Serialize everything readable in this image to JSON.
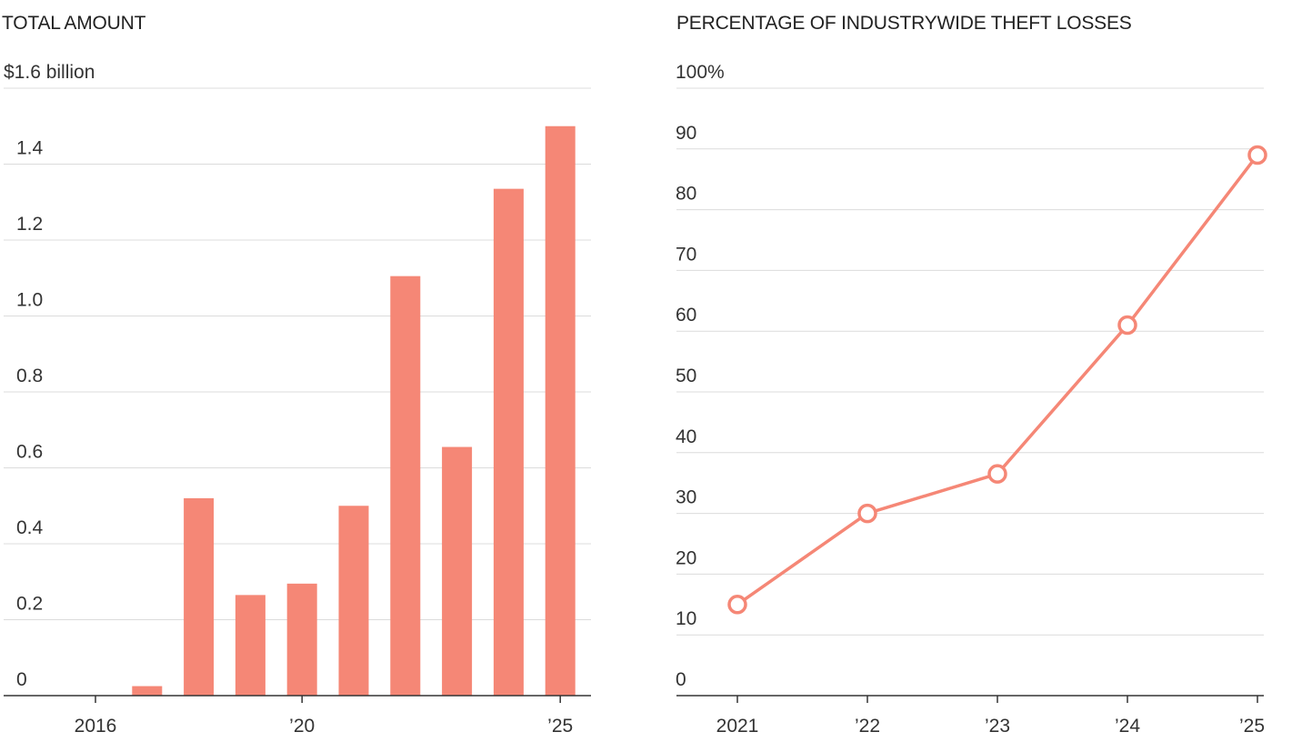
{
  "colors": {
    "accent": "#f58776",
    "grid": "#dcdcdc",
    "axis": "#333333",
    "text": "#222222"
  },
  "chart_data": [
    {
      "type": "bar",
      "title": "TOTAL AMOUNT",
      "ylabel": "",
      "xlabel": "",
      "ylim": [
        0,
        1.6
      ],
      "y_ticks": [
        0,
        0.2,
        0.4,
        0.6,
        0.8,
        1.0,
        1.2,
        1.4,
        1.6
      ],
      "y_tick_labels": [
        "0",
        "0.2",
        "0.4",
        "0.6",
        "0.8",
        "1.0",
        "1.2",
        "1.4",
        "$1.6 billion"
      ],
      "categories": [
        2016,
        2017,
        2018,
        2019,
        2020,
        2021,
        2022,
        2023,
        2024,
        2025
      ],
      "x_tick_labels": [
        {
          "x": 2016,
          "label": "2016"
        },
        {
          "x": 2020,
          "label": "’20"
        },
        {
          "x": 2025,
          "label": "’25"
        }
      ],
      "values": [
        0,
        0.025,
        0.52,
        0.265,
        0.295,
        0.5,
        1.105,
        0.655,
        1.335,
        1.5
      ],
      "grid": true
    },
    {
      "type": "line",
      "title": "PERCENTAGE OF INDUSTRYWIDE THEFT LOSSES",
      "ylabel": "",
      "xlabel": "",
      "ylim": [
        0,
        100
      ],
      "y_ticks": [
        0,
        10,
        20,
        30,
        40,
        50,
        60,
        70,
        80,
        90,
        100
      ],
      "y_tick_labels": [
        "0",
        "10",
        "20",
        "30",
        "40",
        "50",
        "60",
        "70",
        "80",
        "90",
        "100%"
      ],
      "x": [
        2021,
        2022,
        2023,
        2024,
        2025
      ],
      "x_tick_labels": [
        "2021",
        "’22",
        "’23",
        "’24",
        "’25"
      ],
      "values": [
        15,
        30,
        36.5,
        61,
        89
      ],
      "markers": "hollow-circle",
      "grid": true
    }
  ]
}
